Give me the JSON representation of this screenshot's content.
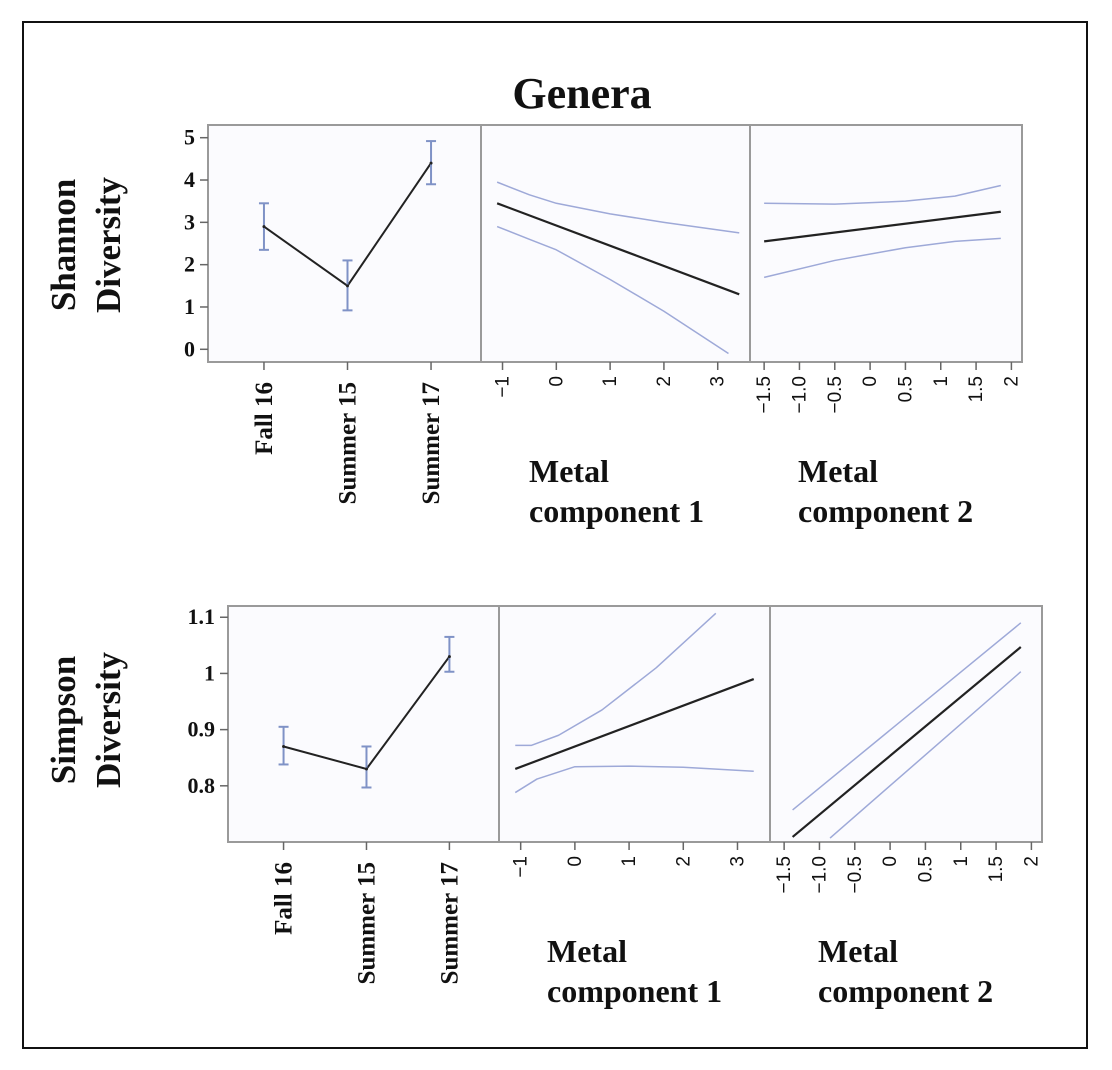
{
  "figure_title": "Genera",
  "chart_data": [
    {
      "type": "line",
      "panel": "shannon-period",
      "row_label": [
        "Shannon",
        "Diversity"
      ],
      "categories": [
        "Fall 16",
        "Summer 15",
        "Summer 17"
      ],
      "values": [
        2.9,
        1.5,
        4.4
      ],
      "error_low": [
        2.35,
        0.92,
        3.9
      ],
      "error_high": [
        3.45,
        2.1,
        4.92
      ],
      "ylim": [
        -0.3,
        5.3
      ],
      "yticks": [
        "0",
        "1",
        "2",
        "3",
        "4",
        "5"
      ],
      "ytick_values": [
        0,
        1,
        2,
        3,
        4,
        5
      ],
      "colors": {
        "line": "#222222",
        "error": "#7f92c6"
      }
    },
    {
      "type": "line",
      "panel": "shannon-metal1",
      "xlabel": [
        "Metal",
        "component 1"
      ],
      "xlim": [
        -1.4,
        3.6
      ],
      "ylim": [
        -0.3,
        5.3
      ],
      "xticks": [
        "−1",
        "0",
        "1",
        "2",
        "3"
      ],
      "xtick_values": [
        -1,
        0,
        1,
        2,
        3
      ],
      "series": [
        {
          "name": "fit",
          "x": [
            -1.1,
            3.4
          ],
          "y": [
            3.45,
            1.3
          ]
        },
        {
          "name": "upper",
          "x": [
            -1.1,
            -0.5,
            0,
            1,
            2,
            3.4
          ],
          "y": [
            3.95,
            3.65,
            3.45,
            3.2,
            3.0,
            2.75
          ]
        },
        {
          "name": "lower",
          "x": [
            -1.1,
            -0.5,
            0,
            1,
            2,
            3.2
          ],
          "y": [
            2.9,
            2.6,
            2.35,
            1.65,
            0.9,
            -0.1
          ]
        }
      ],
      "colors": {
        "fit": "#222222",
        "band": "#9ea9d8"
      }
    },
    {
      "type": "line",
      "panel": "shannon-metal2",
      "xlabel": [
        "Metal",
        "component 2"
      ],
      "xlim": [
        -1.7,
        2.15
      ],
      "ylim": [
        -0.3,
        5.3
      ],
      "xticks": [
        "−1.5",
        "−1.0",
        "−0.5",
        "0",
        "0.5",
        "1",
        "1.5",
        "2"
      ],
      "xtick_values": [
        -1.5,
        -1.0,
        -0.5,
        0,
        0.5,
        1,
        1.5,
        2
      ],
      "series": [
        {
          "name": "fit",
          "x": [
            -1.5,
            1.85
          ],
          "y": [
            2.55,
            3.25
          ]
        },
        {
          "name": "upper",
          "x": [
            -1.5,
            -0.5,
            0.5,
            1.2,
            1.85
          ],
          "y": [
            3.45,
            3.43,
            3.5,
            3.62,
            3.87
          ]
        },
        {
          "name": "lower",
          "x": [
            -1.5,
            -0.5,
            0.5,
            1.2,
            1.85
          ],
          "y": [
            1.7,
            2.1,
            2.4,
            2.55,
            2.62
          ]
        }
      ],
      "colors": {
        "fit": "#222222",
        "band": "#9ea9d8"
      }
    },
    {
      "type": "line",
      "panel": "simpson-period",
      "row_label": [
        "Simpson",
        "Diversity"
      ],
      "categories": [
        "Fall 16",
        "Summer 15",
        "Summer 17"
      ],
      "values": [
        0.87,
        0.83,
        1.03
      ],
      "error_low": [
        0.838,
        0.797,
        1.003
      ],
      "error_high": [
        0.905,
        0.87,
        1.065
      ],
      "ylim": [
        0.7,
        1.12
      ],
      "yticks": [
        "0.8",
        "0.9",
        "1",
        "1.1"
      ],
      "ytick_values": [
        0.8,
        0.9,
        1.0,
        1.1
      ],
      "colors": {
        "line": "#222222",
        "error": "#7f92c6"
      }
    },
    {
      "type": "line",
      "panel": "simpson-metal1",
      "xlabel": [
        "Metal",
        "component 1"
      ],
      "xlim": [
        -1.4,
        3.6
      ],
      "ylim": [
        0.7,
        1.12
      ],
      "xticks": [
        "−1",
        "0",
        "1",
        "2",
        "3"
      ],
      "xtick_values": [
        -1,
        0,
        1,
        2,
        3
      ],
      "series": [
        {
          "name": "fit",
          "x": [
            -1.1,
            3.3
          ],
          "y": [
            0.83,
            0.99
          ]
        },
        {
          "name": "upper",
          "x": [
            -1.1,
            -0.8,
            -0.3,
            0.5,
            1.5,
            2.6
          ],
          "y": [
            0.872,
            0.872,
            0.89,
            0.935,
            1.01,
            1.107
          ]
        },
        {
          "name": "lower",
          "x": [
            -1.1,
            -0.7,
            0,
            1,
            2,
            3.3
          ],
          "y": [
            0.788,
            0.812,
            0.834,
            0.835,
            0.833,
            0.826
          ]
        }
      ],
      "colors": {
        "fit": "#222222",
        "band": "#9ea9d8"
      }
    },
    {
      "type": "line",
      "panel": "simpson-metal2",
      "xlabel": [
        "Metal",
        "component 2"
      ],
      "xlim": [
        -1.7,
        2.15
      ],
      "ylim": [
        0.7,
        1.12
      ],
      "xticks": [
        "−1.5",
        "−1.0",
        "−0.5",
        "0",
        "0.5",
        "1",
        "1.5",
        "2"
      ],
      "xtick_values": [
        -1.5,
        -1.0,
        -0.5,
        0,
        0.5,
        1,
        1.5,
        2
      ],
      "series": [
        {
          "name": "fit",
          "x": [
            -1.38,
            1.85
          ],
          "y": [
            0.709,
            1.047
          ]
        },
        {
          "name": "upper",
          "x": [
            -1.38,
            1.85
          ],
          "y": [
            0.757,
            1.09
          ]
        },
        {
          "name": "lower",
          "x": [
            -0.85,
            1.85
          ],
          "y": [
            0.707,
            1.003
          ]
        }
      ],
      "colors": {
        "fit": "#222222",
        "band": "#9ea9d8"
      }
    }
  ]
}
